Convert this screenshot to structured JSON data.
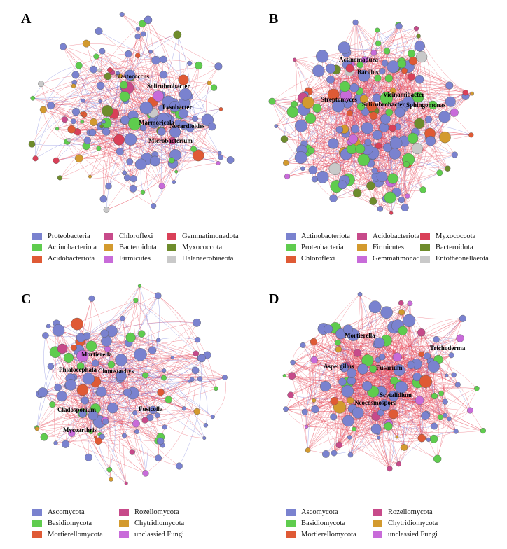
{
  "colors": {
    "positive_edge": "#e8485a",
    "negative_edge": "#6a70d6"
  },
  "panels": [
    {
      "id": "A",
      "label": "A",
      "legend": [
        {
          "name": "Proteobacteria",
          "color": "#7a82cf"
        },
        {
          "name": "Actinobacteriota",
          "color": "#5fcc4e"
        },
        {
          "name": "Acidobacteriota",
          "color": "#df5a35"
        },
        {
          "name": "Chloroflexi",
          "color": "#c74a8a"
        },
        {
          "name": "Bacteroidota",
          "color": "#d39a2e"
        },
        {
          "name": "Firmicutes",
          "color": "#c86bd9"
        },
        {
          "name": "Gemmatimonadota",
          "color": "#d94058"
        },
        {
          "name": "Myxococcota",
          "color": "#6e8c2c"
        },
        {
          "name": "Halanaerobiaeota",
          "color": "#c9c9c9"
        }
      ],
      "node_labels": [
        "Blastococcus",
        "Solirubrobacter",
        "Lysobacter",
        "Marmoricola",
        "Nocardioides",
        "Microbacterium"
      ]
    },
    {
      "id": "B",
      "label": "B",
      "legend": [
        {
          "name": "Actinobacteriota",
          "color": "#7a82cf"
        },
        {
          "name": "Proteobacteria",
          "color": "#5fcc4e"
        },
        {
          "name": "Chloroflexi",
          "color": "#df5a35"
        },
        {
          "name": "Acidobacteriota",
          "color": "#c74a8a"
        },
        {
          "name": "Firmicutes",
          "color": "#d39a2e"
        },
        {
          "name": "Gemmatimonadota",
          "color": "#c86bd9"
        },
        {
          "name": "Myxococcota",
          "color": "#d94058"
        },
        {
          "name": "Bacteroidota",
          "color": "#6e8c2c"
        },
        {
          "name": "Entotheonellaeota",
          "color": "#c9c9c9"
        }
      ],
      "node_labels": [
        "Actinomadura",
        "Bacillus",
        "Vicinamibacter",
        "Streptomyces",
        "Solirubrobacter",
        "Sphingomonas"
      ]
    },
    {
      "id": "C",
      "label": "C",
      "legend": [
        {
          "name": "Ascomycota",
          "color": "#7a82cf"
        },
        {
          "name": "Basidiomycota",
          "color": "#5fcc4e"
        },
        {
          "name": "Mortierellomycota",
          "color": "#df5a35"
        },
        {
          "name": "Rozellomycota",
          "color": "#c74a8a"
        },
        {
          "name": "Chytridiomycota",
          "color": "#d39a2e"
        },
        {
          "name": "unclassied Fungi",
          "color": "#c86bd9"
        }
      ],
      "node_labels": [
        "Mortierella",
        "Phialocephala",
        "Clonostachys",
        "Cladosporium",
        "Fusicolla",
        "Mycoarthris"
      ]
    },
    {
      "id": "D",
      "label": "D",
      "legend": [
        {
          "name": "Ascomycota",
          "color": "#7a82cf"
        },
        {
          "name": "Basidiomycota",
          "color": "#5fcc4e"
        },
        {
          "name": "Mortierellomycota",
          "color": "#df5a35"
        },
        {
          "name": "Rozellomycota",
          "color": "#c74a8a"
        },
        {
          "name": "Chytridiomycota",
          "color": "#d39a2e"
        },
        {
          "name": "unclassied Fungi",
          "color": "#c86bd9"
        }
      ],
      "node_labels": [
        "Mortierella",
        "Trichoderma",
        "Aspergillus",
        "Fusarium",
        "Scytalidium",
        "Neocosmospora"
      ]
    }
  ]
}
